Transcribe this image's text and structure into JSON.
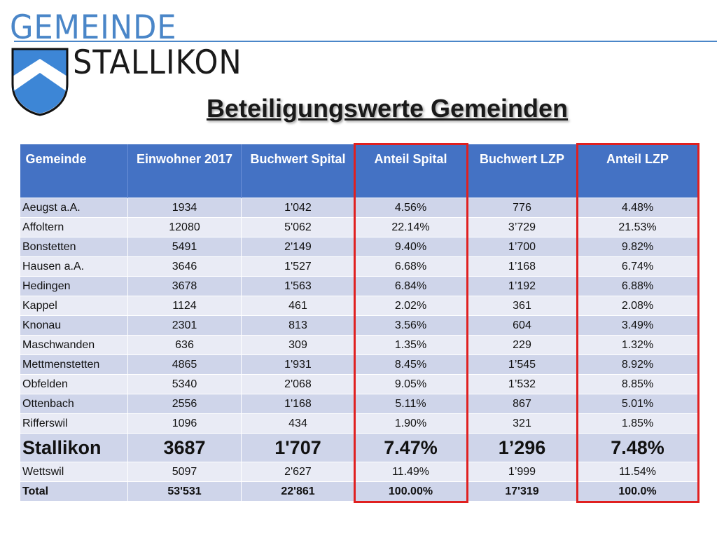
{
  "logo": {
    "line1": "GEMEINDE",
    "line2": "STALLIKON",
    "brand_color": "#4a86c8"
  },
  "title": "Beteiligungswerte Gemeinden",
  "table": {
    "headers": [
      "Gemeinde",
      "Einwohner 2017",
      "Buchwert Spital",
      "Anteil Spital",
      "Buchwert LZP",
      "Anteil LZP"
    ],
    "rows": [
      [
        "Aeugst a.A.",
        "1934",
        "1'042",
        "4.56%",
        "776",
        "4.48%"
      ],
      [
        "Affoltern",
        "12080",
        "5'062",
        "22.14%",
        "3’729",
        "21.53%"
      ],
      [
        "Bonstetten",
        "5491",
        "2'149",
        "9.40%",
        "1’700",
        "9.82%"
      ],
      [
        "Hausen a.A.",
        "3646",
        "1'527",
        "6.68%",
        "1’168",
        "6.74%"
      ],
      [
        "Hedingen",
        "3678",
        "1'563",
        "6.84%",
        "1’192",
        "6.88%"
      ],
      [
        "Kappel",
        "1124",
        "461",
        "2.02%",
        "361",
        "2.08%"
      ],
      [
        "Knonau",
        "2301",
        "813",
        "3.56%",
        "604",
        "3.49%"
      ],
      [
        "Maschwanden",
        "636",
        "309",
        "1.35%",
        "229",
        "1.32%"
      ],
      [
        "Mettmenstetten",
        "4865",
        "1'931",
        "8.45%",
        "1’545",
        "8.92%"
      ],
      [
        "Obfelden",
        "5340",
        "2'068",
        "9.05%",
        "1’532",
        "8.85%"
      ],
      [
        "Ottenbach",
        "2556",
        "1'168",
        "5.11%",
        "867",
        "5.01%"
      ],
      [
        "Rifferswil",
        "1096",
        "434",
        "1.90%",
        "321",
        "1.85%"
      ],
      [
        "Stallikon",
        "3687",
        "1'707",
        "7.47%",
        "1’296",
        "7.48%"
      ],
      [
        "Wettswil",
        "5097",
        "2'627",
        "11.49%",
        "1’999",
        "11.54%"
      ],
      [
        "Total",
        "53'531",
        "22'861",
        "100.00%",
        "17'319",
        "100.0%"
      ]
    ],
    "highlight_row": "Stallikon",
    "highlight_color": "#e02020",
    "header_color": "#4472c4"
  }
}
